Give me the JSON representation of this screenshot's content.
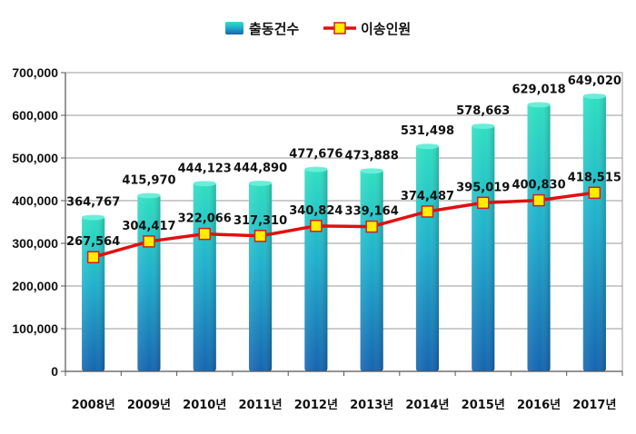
{
  "chart_data": {
    "type": "bar",
    "categories": [
      "2008년",
      "2009년",
      "2010년",
      "2011년",
      "2012년",
      "2013년",
      "2014년",
      "2015년",
      "2016년",
      "2017년"
    ],
    "series": [
      {
        "name": "출동건수",
        "kind": "bar",
        "color": "#1e8fc4",
        "values": [
          364767,
          415970,
          444123,
          444890,
          477676,
          473888,
          531498,
          578663,
          629018,
          649020
        ],
        "labels": [
          "364,767",
          "415,970",
          "444,123",
          "444,890",
          "477,676",
          "473,888",
          "531,498",
          "578,663",
          "629,018",
          "649,020"
        ]
      },
      {
        "name": "이송인원",
        "kind": "line",
        "color": "#e01010",
        "marker_color": "#ffee00",
        "values": [
          267564,
          304417,
          322066,
          317310,
          340824,
          339164,
          374487,
          395019,
          400830,
          418515
        ],
        "labels": [
          "267,564",
          "304,417",
          "322,066",
          "317,310",
          "340,824",
          "339,164",
          "374,487",
          "395,019",
          "400,830",
          "418,515"
        ]
      }
    ],
    "ylim": [
      0,
      700000
    ],
    "yticks": [
      0,
      100000,
      200000,
      300000,
      400000,
      500000,
      600000,
      700000
    ],
    "ytick_labels": [
      "0",
      "100,000",
      "200,000",
      "300,000",
      "400,000",
      "500,000",
      "600,000",
      "700,000"
    ],
    "legend_position": "top",
    "grid": true
  }
}
